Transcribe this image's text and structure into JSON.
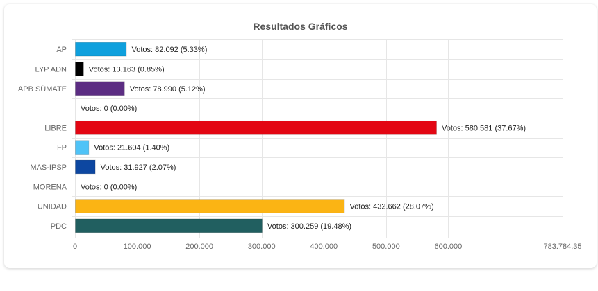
{
  "chart_data": {
    "type": "bar",
    "orientation": "horizontal",
    "title": "Resultados Gráficos",
    "xlabel": "",
    "ylabel": "",
    "xlim": [
      0,
      783784.35
    ],
    "grid": true,
    "categories": [
      "AP",
      "LYP ADN",
      "APB SÚMATE",
      "",
      "LIBRE",
      "FP",
      "MAS-IPSP",
      "MORENA",
      "UNIDAD",
      "PDC"
    ],
    "values": [
      82092,
      13163,
      78990,
      0,
      580581,
      21604,
      31927,
      0,
      432662,
      300259
    ],
    "data_labels": [
      "Votos: 82.092 (5.33%)",
      "Votos: 13.163 (0.85%)",
      "Votos: 78.990 (5.12%)",
      "Votos: 0 (0.00%)",
      "Votos: 580.581 (37.67%)",
      "Votos: 21.604 (1.40%)",
      "Votos: 31.927 (2.07%)",
      "Votos: 0 (0.00%)",
      "Votos: 432.662 (28.07%)",
      "Votos: 300.259 (19.48%)"
    ],
    "colors": [
      "#0fa0dd",
      "#000000",
      "#5c2d83",
      "#cccccc",
      "#e30613",
      "#4fc3f7",
      "#0d47a1",
      "#8d1a1a",
      "#fbb414",
      "#215f60"
    ],
    "x_ticks": [
      0,
      100000,
      200000,
      300000,
      400000,
      500000,
      600000,
      783784.35
    ],
    "x_tick_labels": [
      "0",
      "100.000",
      "200.000",
      "300.000",
      "400.000",
      "500.000",
      "600.000",
      "783.784,35"
    ]
  }
}
